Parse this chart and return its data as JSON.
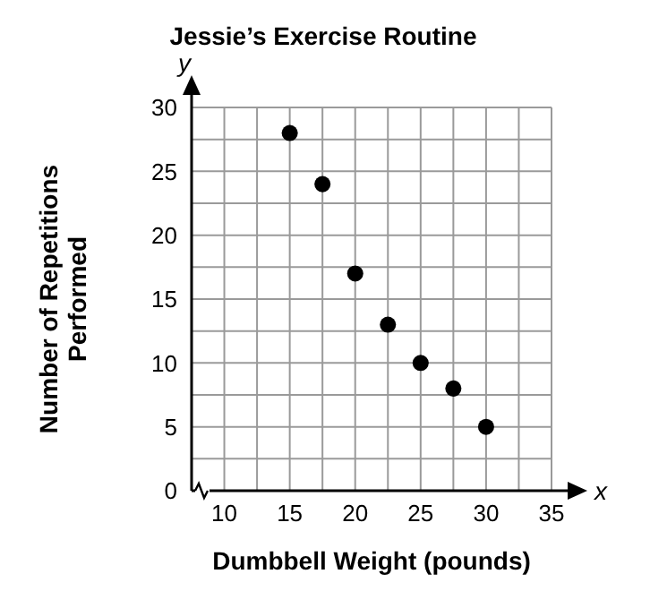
{
  "chart_data": {
    "type": "scatter",
    "title": "Jessie’s Exercise Routine",
    "xlabel": "Dumbbell Weight (pounds)",
    "ylabel": "Number of Repetitions Performed",
    "annotations": [
      "x",
      "y"
    ],
    "x": [
      15,
      17.5,
      20,
      22.5,
      25,
      27.5,
      30
    ],
    "series": [
      {
        "color": "#000000",
        "values": [
          28,
          24,
          17,
          13,
          10,
          8,
          5
        ]
      }
    ],
    "xlim": [
      7.5,
      35
    ],
    "xticks": [
      10,
      {
        "value": 12.5,
        "label": null
      },
      15,
      {
        "value": 17.5,
        "label": null
      },
      20,
      {
        "value": 22.5,
        "label": null
      },
      25,
      {
        "value": 27.5,
        "label": null
      },
      30,
      {
        "value": 32.5,
        "label": null
      },
      35
    ],
    "ylim": [
      0,
      30
    ],
    "yticks": [
      0,
      {
        "value": 2.5,
        "label": null
      },
      5,
      {
        "value": 7.5,
        "label": null
      },
      10,
      {
        "value": 12.5,
        "label": null
      },
      15,
      {
        "value": 17.5,
        "label": null
      },
      20,
      {
        "value": 22.5,
        "label": null
      },
      25,
      {
        "value": 27.5,
        "label": null
      },
      30
    ],
    "grid": true,
    "marker": "circle"
  }
}
